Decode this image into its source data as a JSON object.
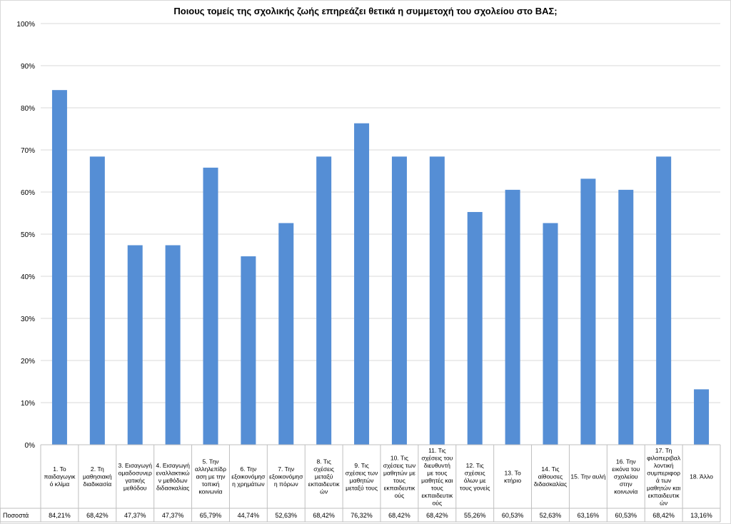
{
  "chart_data": {
    "type": "bar",
    "title": "Ποιους τομείς της σχολικής ζωής επηρεάζει θετικά η συμμετοχή του σχολείου στο ΒΑΣ;",
    "xlabel": "",
    "ylabel": "",
    "ylim": [
      0,
      100
    ],
    "y_ticks": [
      "0%",
      "10%",
      "20%",
      "30%",
      "40%",
      "50%",
      "60%",
      "70%",
      "80%",
      "90%",
      "100%"
    ],
    "grid": true,
    "legend": "none",
    "bar_color": "#558ed5",
    "categories": [
      [
        "1. Το",
        "παιδαγωγικ",
        "ό κλίμα"
      ],
      [
        "2. Τη",
        "μαθησιακή",
        "διαδικασία"
      ],
      [
        "3. Εισαγωγή",
        "ομαδοσυνερ",
        "γατικής",
        "μεθόδου"
      ],
      [
        "4. Εισαγωγή",
        "εναλλακτικώ",
        "ν μεθόδων",
        "διδασκαλίας"
      ],
      [
        "5. Την",
        "αλληλεπίδρ",
        "αση με την",
        "τοπική",
        "κοινωνία"
      ],
      [
        "6. Την",
        "εξοικονόμησ",
        "η χρημάτων"
      ],
      [
        "7. Την",
        "εξοικονόμησ",
        "η πόρων"
      ],
      [
        "8. Τις",
        "σχέσεις",
        "μεταξύ",
        "εκπαιδευτικ",
        "ών"
      ],
      [
        "9. Τις",
        "σχέσεις των",
        "μαθητών",
        "μεταξύ τους"
      ],
      [
        "10. Τις",
        "σχέσεις των",
        "μαθητών με",
        "τους",
        "εκπαιδευτικ",
        "ούς"
      ],
      [
        "11. Τις",
        "σχέσεις του",
        "διευθυντή",
        "με τους",
        "μαθητές και",
        "τους",
        "εκπαιδευτικ",
        "ούς"
      ],
      [
        "12. Τις",
        "σχέσεις",
        "όλων με",
        "τους γονείς"
      ],
      [
        "13. Το",
        "κτήριο"
      ],
      [
        "14. Τις",
        "αίθουσες",
        "διδασκαλίας"
      ],
      [
        "15. Την αυλή"
      ],
      [
        "16. Την",
        "εικόνα του",
        "σχολείου",
        "στην",
        "κοινωνία"
      ],
      [
        "17. Τη",
        "φιλοπεριβαλ",
        "λοντική",
        "συμπεριφορ",
        "ά των",
        "μαθητών και",
        "εκπαιδευτικ",
        "ών"
      ],
      [
        "18. Άλλο"
      ]
    ],
    "series": [
      {
        "name": "Ποσοστά",
        "values": [
          84.21,
          68.42,
          47.37,
          47.37,
          65.79,
          44.74,
          52.63,
          68.42,
          76.32,
          68.42,
          68.42,
          55.26,
          60.53,
          52.63,
          63.16,
          60.53,
          68.42,
          13.16
        ],
        "labels": [
          "84,21%",
          "68,42%",
          "47,37%",
          "47,37%",
          "65,79%",
          "44,74%",
          "52,63%",
          "68,42%",
          "76,32%",
          "68,42%",
          "68,42%",
          "55,26%",
          "60,53%",
          "52,63%",
          "63,16%",
          "60,53%",
          "68,42%",
          "13,16%"
        ]
      }
    ]
  }
}
